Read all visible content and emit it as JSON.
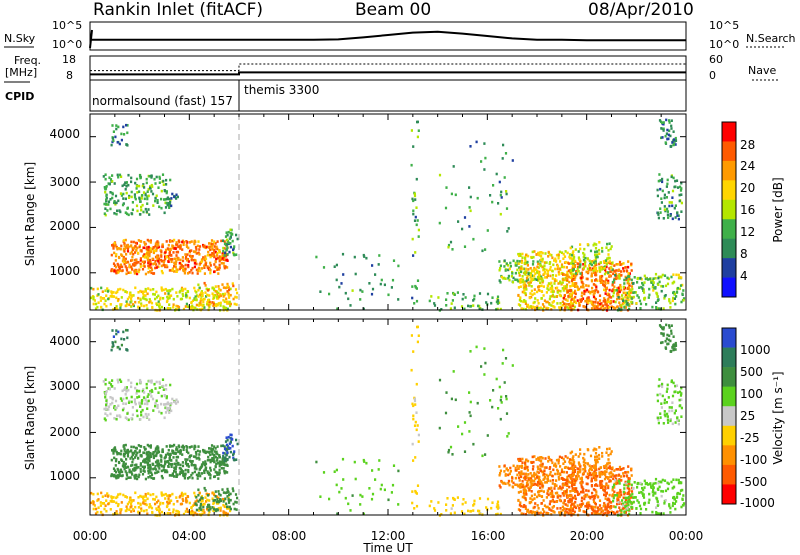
{
  "header": {
    "station": "Rankin Inlet (fitACF)",
    "beam": "Beam 00",
    "date": "08/Apr/2010"
  },
  "summary": {
    "nsky_label": "N.Sky",
    "nsky_ticks": [
      "10^5",
      "10^0"
    ],
    "nsearch_label": "N.Search",
    "nsearch_ticks": [
      "10^5",
      "10^0"
    ],
    "freq_label_1": "Freq.",
    "freq_label_2": "[MHz]",
    "freq_ticks": [
      "18",
      "8"
    ],
    "nave_label": "Nave",
    "nave_ticks": [
      "60",
      "0"
    ],
    "cpid_label": "CPID",
    "cpid_1": "normalsound (fast) 157",
    "cpid_2": "themis 3300",
    "cpid_change_time": "05:55",
    "nsky_level": [
      1.7,
      1.7,
      1.7,
      1.7,
      1.7,
      1.7,
      1.7,
      1.7,
      1.7,
      1.7,
      1.8,
      2.2,
      2.7,
      3.2,
      3.4,
      3.0,
      2.5,
      2.0,
      1.7,
      1.7,
      1.6,
      1.6,
      1.6,
      1.6,
      1.6
    ],
    "freq_mhz": {
      "before": 9.8,
      "after": 10.8
    },
    "nave_level": {
      "before": 22,
      "after": 42
    }
  },
  "panels": [
    {
      "ylabel": "Slant Range [km]",
      "yticks": [
        "4000",
        "3000",
        "2000",
        "1000"
      ],
      "ylim": [
        180,
        4500
      ]
    },
    {
      "ylabel": "Slant Range [km]",
      "yticks": [
        "4000",
        "3000",
        "2000",
        "1000"
      ],
      "ylim": [
        180,
        4500
      ]
    }
  ],
  "xaxis": {
    "label": "Time UT",
    "ticks": [
      "00:00",
      "04:00",
      "08:00",
      "12:00",
      "16:00",
      "20:00",
      "00:00"
    ]
  },
  "power_scale": {
    "label": "Power [dB]",
    "ticks": [
      "28",
      "24",
      "20",
      "16",
      "12",
      "8",
      "4"
    ],
    "colors": [
      "#ff0000",
      "#ff5a00",
      "#ff9a00",
      "#ffd500",
      "#b4e600",
      "#3fb049",
      "#2e8b57",
      "#1f3fa0",
      "#1010ff"
    ]
  },
  "velocity_scale": {
    "label": "Velocity [m s⁻¹]",
    "ticks": [
      "1000",
      "500",
      "100",
      "25",
      "-25",
      "-100",
      "-500",
      "-1000"
    ],
    "colors": [
      "#2a4bd0",
      "#2e7d5a",
      "#3e8e3e",
      "#5bd21e",
      "#c8c8c8",
      "#ffd000",
      "#ff9000",
      "#ff5a00",
      "#ff0000"
    ]
  },
  "chart_data": {
    "type": "heatmap",
    "title": "Rankin Inlet (fitACF)",
    "x_unit": "hours UT",
    "xlim": [
      0,
      24
    ],
    "xlabel": "Time UT",
    "ylabel": "Slant Range [km]",
    "ylim": [
      180,
      4500
    ],
    "grid": false,
    "cpid_change_hour": 6,
    "regions": [
      {
        "t": [
          0,
          5.6
        ],
        "r": [
          200,
          700
        ],
        "power_db": 14,
        "velocity": -90,
        "density": 0.45
      },
      {
        "t": [
          0.8,
          5.5
        ],
        "r": [
          1000,
          1750
        ],
        "power_db": 22,
        "velocity": 250,
        "density": 0.7
      },
      {
        "t": [
          0.5,
          3.2
        ],
        "r": [
          2300,
          3200
        ],
        "power_db": 7,
        "velocity": 20,
        "density": 0.35
      },
      {
        "t": [
          3.0,
          3.5
        ],
        "r": [
          2500,
          2800
        ],
        "power_db": 5,
        "velocity": 15,
        "density": 0.4
      },
      {
        "t": [
          0.8,
          1.5
        ],
        "r": [
          3800,
          4300
        ],
        "power_db": 4,
        "velocity": 700,
        "density": 0.3
      },
      {
        "t": [
          5.3,
          5.9
        ],
        "r": [
          1400,
          2000
        ],
        "power_db": 6,
        "velocity": 900,
        "density": 0.5
      },
      {
        "t": [
          4.2,
          5.9
        ],
        "r": [
          300,
          800
        ],
        "power_db": 18,
        "velocity": 200,
        "density": 0.4
      },
      {
        "t": [
          12.9,
          13.2
        ],
        "r": [
          200,
          4400
        ],
        "power_db": 6,
        "velocity": -60,
        "density": 0.12
      },
      {
        "t": [
          13.6,
          16.5
        ],
        "r": [
          200,
          600
        ],
        "power_db": 8,
        "velocity": -60,
        "density": 0.2
      },
      {
        "t": [
          16.4,
          18.2
        ],
        "r": [
          800,
          1300
        ],
        "power_db": 10,
        "velocity": -400,
        "density": 0.45
      },
      {
        "t": [
          17.2,
          19.5
        ],
        "r": [
          200,
          1500
        ],
        "power_db": 16,
        "velocity": -420,
        "density": 0.55
      },
      {
        "t": [
          19.0,
          21.8
        ],
        "r": [
          200,
          1300
        ],
        "power_db": 22,
        "velocity": -600,
        "density": 0.6
      },
      {
        "t": [
          19.3,
          21.0
        ],
        "r": [
          1000,
          1700
        ],
        "power_db": 12,
        "velocity": -300,
        "density": 0.4
      },
      {
        "t": [
          21.0,
          23.9
        ],
        "r": [
          200,
          1000
        ],
        "power_db": 10,
        "velocity": 60,
        "density": 0.35
      },
      {
        "t": [
          22.8,
          23.8
        ],
        "r": [
          2200,
          3200
        ],
        "power_db": 6,
        "velocity": 50,
        "density": 0.3
      },
      {
        "t": [
          22.9,
          23.6
        ],
        "r": [
          3800,
          4400
        ],
        "power_db": 5,
        "velocity": 300,
        "density": 0.45
      },
      {
        "t": [
          9.0,
          12.5
        ],
        "r": [
          200,
          1500
        ],
        "power_db": 6,
        "velocity": 80,
        "density": 0.04
      },
      {
        "t": [
          14.0,
          17.0
        ],
        "r": [
          1500,
          4000
        ],
        "power_db": 6,
        "velocity": 100,
        "density": 0.03
      }
    ]
  }
}
